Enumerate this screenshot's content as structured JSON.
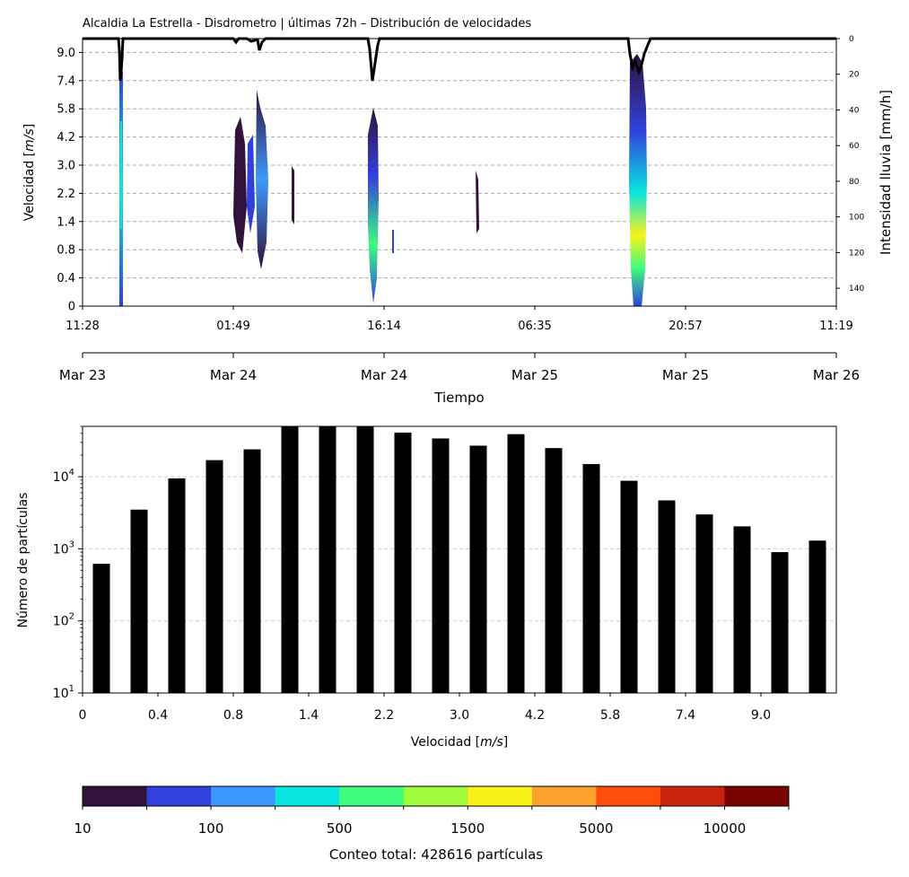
{
  "title": "Alcaldia La Estrella - Disdrometro | últimas 72h – Distribución de velocidades",
  "chart_data": [
    {
      "type": "heatmap",
      "ylabel_prefix": "Velocidad [",
      "ylabel_unit": "m/s",
      "ylabel_suffix": "]",
      "y_ticks": [
        "0",
        "0.4",
        "0.8",
        "1.4",
        "2.2",
        "3.0",
        "4.2",
        "5.8",
        "7.4",
        "9.0"
      ],
      "time_ticks": [
        "11:28",
        "01:49",
        "16:14",
        "06:35",
        "20:57",
        "11:19"
      ],
      "date_ticks": [
        "Mar 23",
        "Mar 24",
        "Mar 24",
        "Mar 25",
        "Mar 25",
        "Mar 26"
      ],
      "xlabel": "Tiempo",
      "secondary_ylabel": "Intensidad lluvia [mm/h]",
      "secondary_y_ticks": [
        "0",
        "20",
        "40",
        "60",
        "80",
        "100",
        "120",
        "140"
      ],
      "secondary_ylim": [
        0,
        150
      ],
      "grid": "horizontal dashed",
      "rain_events": [
        {
          "time": "Mar 23 14:00",
          "vel_range": [
            0.0,
            9.0
          ],
          "peak": "teal"
        },
        {
          "time": "Mar 24 02:30–03:40",
          "vel_range": [
            0.6,
            5.8
          ],
          "peak": "blue"
        },
        {
          "time": "Mar 24 05:30",
          "vel_range": [
            1.2,
            3.0
          ],
          "peak": "purple"
        },
        {
          "time": "Mar 24 17:00",
          "vel_range": [
            0.0,
            6.5
          ],
          "peak": "green"
        },
        {
          "time": "Mar 25 03:00",
          "vel_range": [
            1.0,
            3.0
          ],
          "peak": "purple"
        },
        {
          "time": "Mar 25 18:30",
          "vel_range": [
            0.0,
            9.0
          ],
          "peak": "yellow"
        }
      ]
    },
    {
      "type": "bar",
      "xlabel_prefix": "Velocidad [",
      "xlabel_unit": "m/s",
      "xlabel_suffix": "]",
      "ylabel": "Número de partículas",
      "yscale": "log",
      "ylim": [
        10,
        50000
      ],
      "x_tick_labels": [
        "0",
        "0.4",
        "0.8",
        "1.4",
        "2.2",
        "3.0",
        "4.2",
        "5.8",
        "7.4",
        "9.0"
      ],
      "y_tick_labels": [
        {
          "base": "10",
          "exp": "1"
        },
        {
          "base": "10",
          "exp": "2"
        },
        {
          "base": "10",
          "exp": "3"
        },
        {
          "base": "10",
          "exp": "4"
        }
      ],
      "values": [
        620,
        3500,
        9500,
        17000,
        24000,
        50000,
        50000,
        50000,
        41000,
        34000,
        27000,
        39000,
        25000,
        15000,
        8800,
        4700,
        3000,
        2050,
        900,
        1300
      ],
      "color": "#000000",
      "grid": "horizontal dashed"
    }
  ],
  "colorbar": {
    "tick_labels": [
      "10",
      "100",
      "500",
      "1500",
      "5000",
      "10000"
    ],
    "colors": [
      "#30123b",
      "#3140dd",
      "#3d98fd",
      "#09e5e1",
      "#3efc7c",
      "#a0fc3c",
      "#f9f21a",
      "#fda12d",
      "#fe4d09",
      "#c8240c",
      "#7a0403"
    ],
    "caption": "Conteo total: 428616 partículas"
  }
}
